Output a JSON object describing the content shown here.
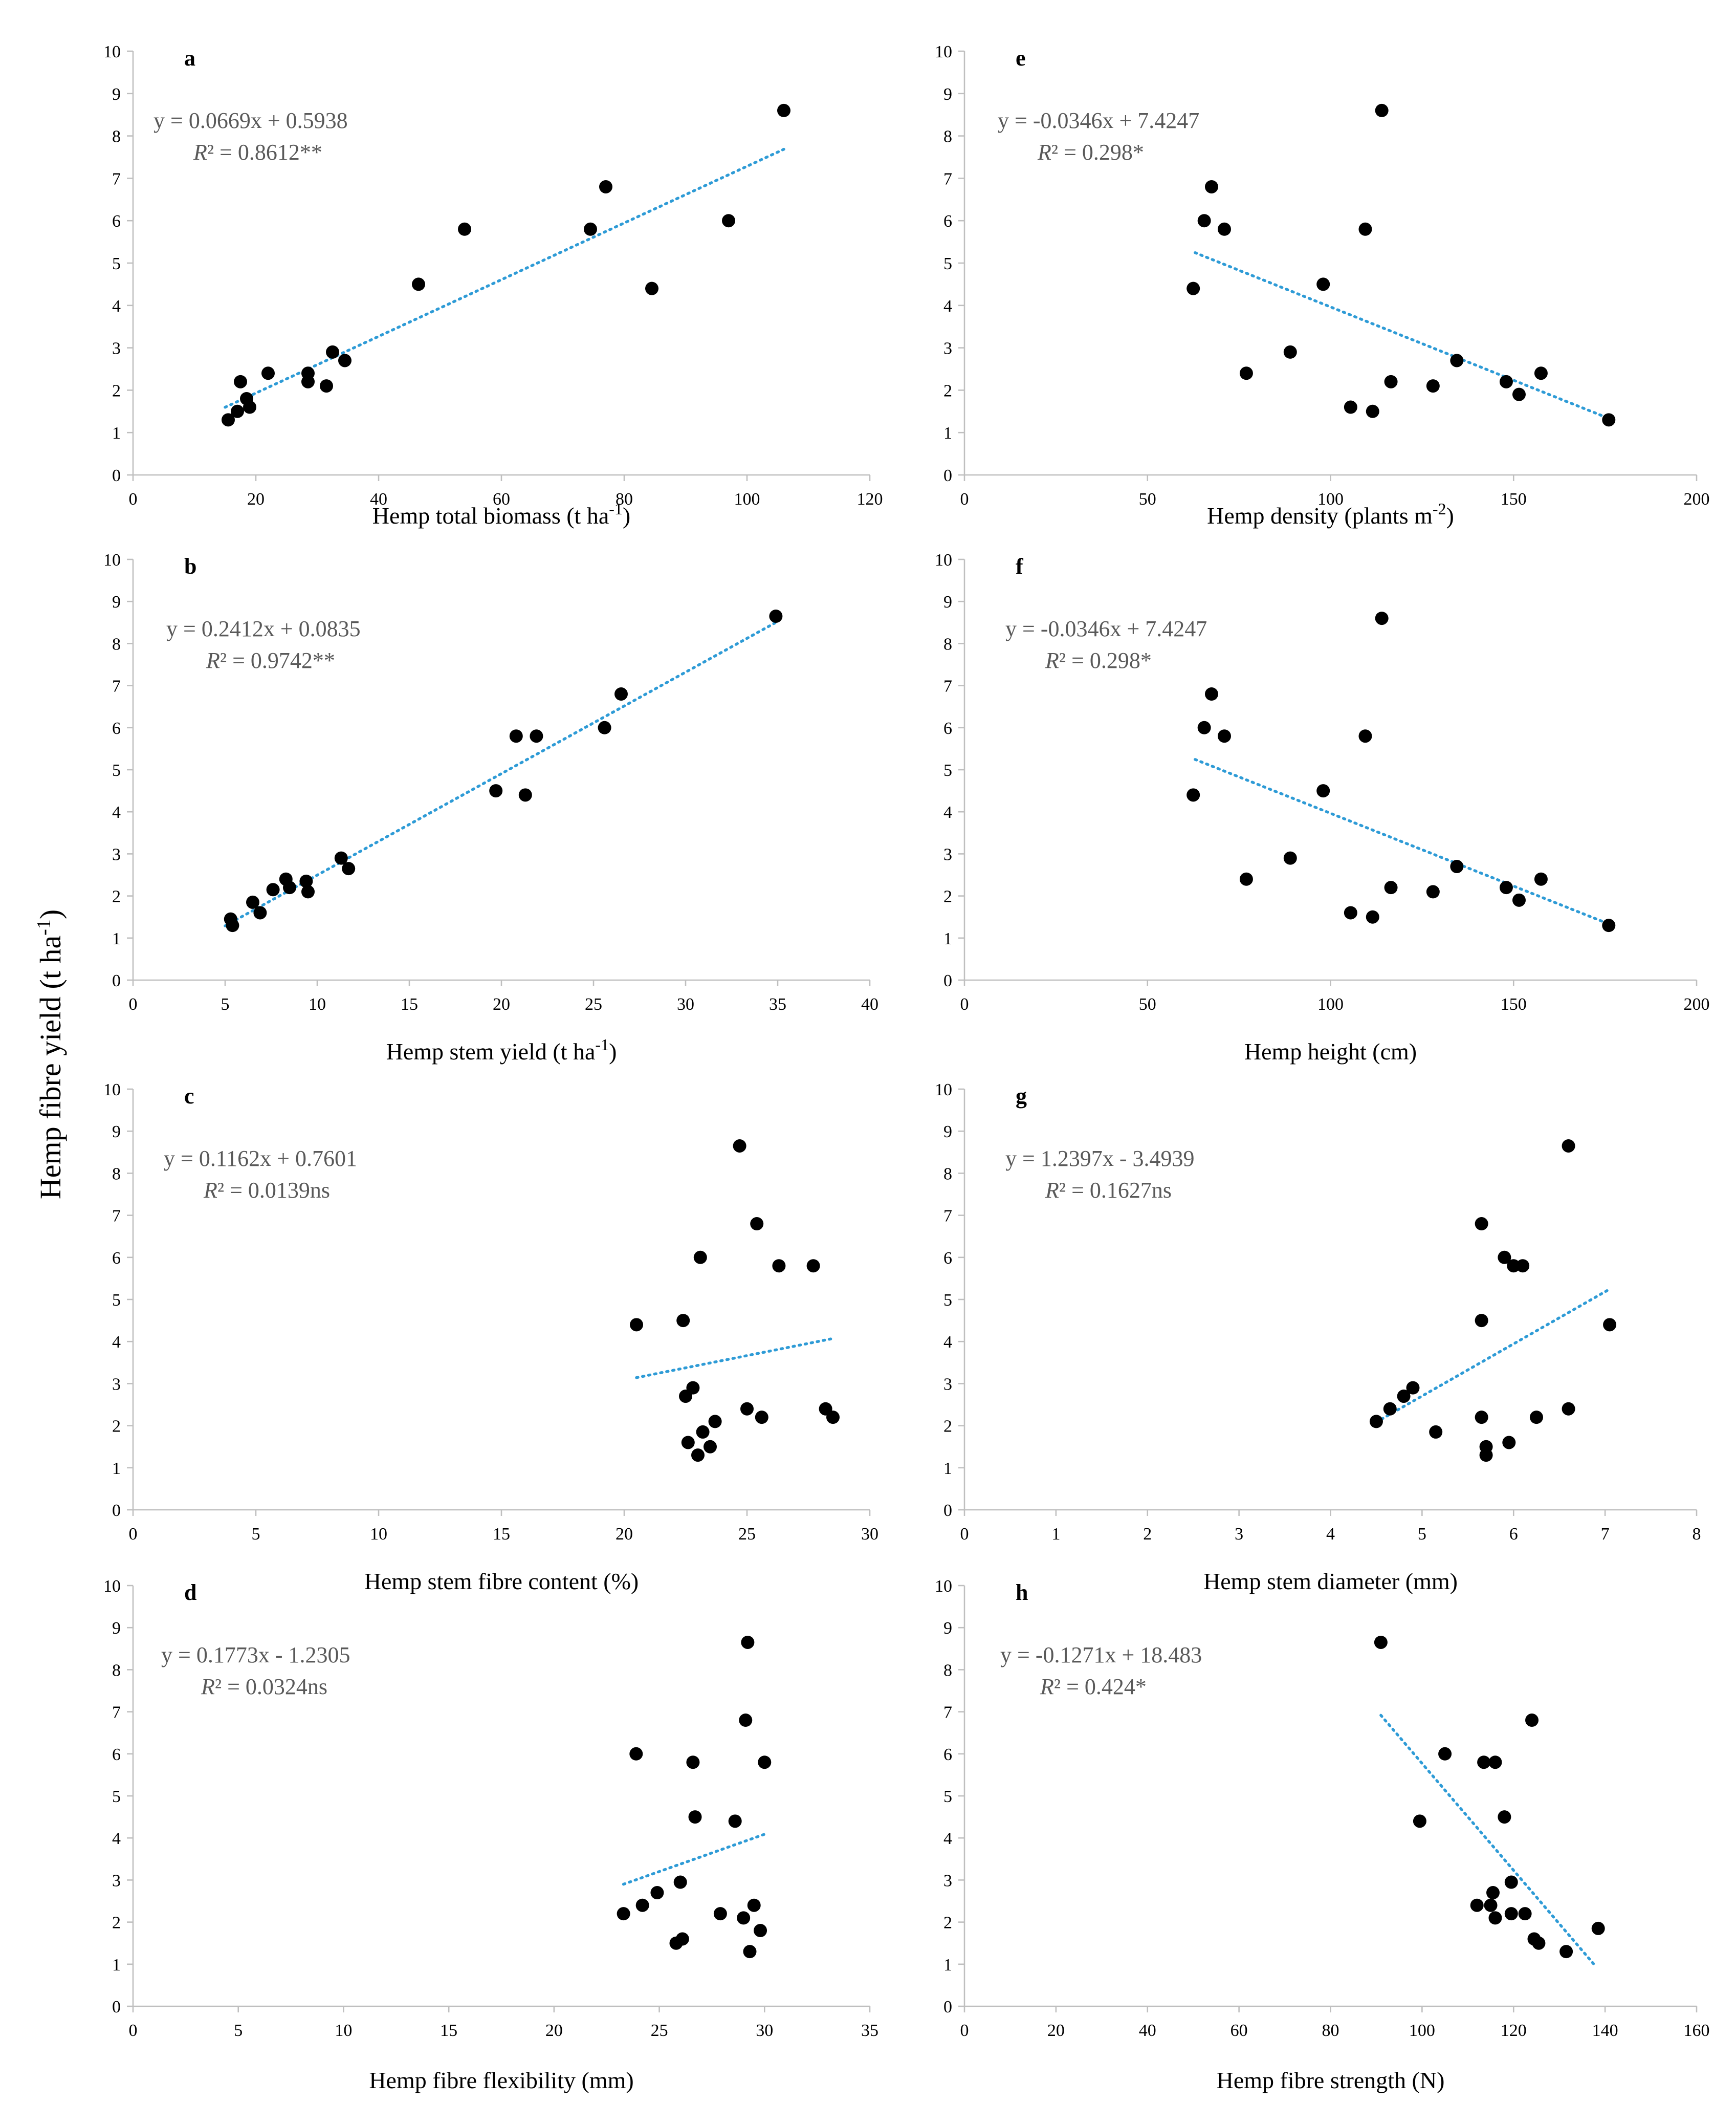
{
  "figure": {
    "ylabel": "Hemp fibre yield (t ha",
    "ylabel_sup": "-1",
    "ylabel_tail": ")"
  },
  "chart_data": [
    {
      "id": "a",
      "type": "scatter",
      "letter": "a",
      "xlabel": "Hemp total biomass (t ha",
      "xlabel_sup": "-1",
      "xlabel_tail": ")",
      "xlim": [
        0,
        120
      ],
      "xticks": [
        0,
        20,
        40,
        60,
        80,
        100,
        120
      ],
      "ylim": [
        0,
        10
      ],
      "yticks": [
        0,
        1,
        2,
        3,
        4,
        5,
        6,
        7,
        8,
        9,
        10
      ],
      "equation": "y = 0.0669x + 0.5938",
      "r2_value": " = 0.8612**",
      "trend": {
        "slope": 0.0669,
        "intercept": 0.5938,
        "x_range": [
          15,
          106
        ]
      },
      "points": [
        [
          15.5,
          1.3
        ],
        [
          17,
          1.5
        ],
        [
          17.5,
          2.2
        ],
        [
          18.5,
          1.8
        ],
        [
          19,
          1.6
        ],
        [
          22,
          2.4
        ],
        [
          28.5,
          2.2
        ],
        [
          28.5,
          2.4
        ],
        [
          31.5,
          2.1
        ],
        [
          32.5,
          2.9
        ],
        [
          34.5,
          2.7
        ],
        [
          46.5,
          4.5
        ],
        [
          54,
          5.8
        ],
        [
          74.5,
          5.8
        ],
        [
          77,
          6.8
        ],
        [
          84.5,
          4.4
        ],
        [
          97,
          6.0
        ],
        [
          106,
          8.6
        ]
      ]
    },
    {
      "id": "e",
      "type": "scatter",
      "letter": "e",
      "xlabel": "Hemp density (plants m",
      "xlabel_sup": "-2",
      "xlabel_tail": ")",
      "xlim": [
        0,
        200
      ],
      "xticks": [
        0,
        50,
        100,
        150,
        200
      ],
      "ylim": [
        0,
        10
      ],
      "yticks": [
        0,
        1,
        2,
        3,
        4,
        5,
        6,
        7,
        8,
        9,
        10
      ],
      "equation": "y = -0.0346x + 7.4247",
      "r2_value": " = 0.298*",
      "trend": {
        "slope": -0.0346,
        "intercept": 7.4247,
        "x_range": [
          63,
          176
        ]
      },
      "points": [
        [
          62.5,
          4.4
        ],
        [
          65.5,
          6.0
        ],
        [
          67.5,
          6.8
        ],
        [
          71,
          5.8
        ],
        [
          77,
          2.4
        ],
        [
          89,
          2.9
        ],
        [
          98,
          4.5
        ],
        [
          105.5,
          1.6
        ],
        [
          109.5,
          5.8
        ],
        [
          111.5,
          1.5
        ],
        [
          114,
          8.6
        ],
        [
          116.5,
          2.2
        ],
        [
          128,
          2.1
        ],
        [
          134.5,
          2.7
        ],
        [
          148,
          2.2
        ],
        [
          151.5,
          1.9
        ],
        [
          157.5,
          2.4
        ],
        [
          176,
          1.3
        ]
      ]
    },
    {
      "id": "b",
      "type": "scatter",
      "letter": "b",
      "xlabel": "Hemp stem yield (t ha",
      "xlabel_sup": "-1",
      "xlabel_tail": ")",
      "xlim": [
        0,
        40
      ],
      "xticks": [
        0,
        5,
        10,
        15,
        20,
        25,
        30,
        35,
        40
      ],
      "ylim": [
        0,
        10
      ],
      "yticks": [
        0,
        1,
        2,
        3,
        4,
        5,
        6,
        7,
        8,
        9,
        10
      ],
      "equation": "y = 0.2412x + 0.0835",
      "r2_value": " = 0.9742**",
      "trend": {
        "slope": 0.2412,
        "intercept": 0.0835,
        "x_range": [
          5,
          35
        ]
      },
      "points": [
        [
          5.3,
          1.45
        ],
        [
          5.4,
          1.3
        ],
        [
          6.5,
          1.85
        ],
        [
          6.9,
          1.6
        ],
        [
          7.6,
          2.15
        ],
        [
          8.3,
          2.4
        ],
        [
          8.5,
          2.2
        ],
        [
          9.4,
          2.35
        ],
        [
          9.5,
          2.1
        ],
        [
          11.3,
          2.9
        ],
        [
          11.7,
          2.65
        ],
        [
          19.7,
          4.5
        ],
        [
          20.8,
          5.8
        ],
        [
          21.3,
          4.4
        ],
        [
          21.9,
          5.8
        ],
        [
          25.6,
          6.0
        ],
        [
          26.5,
          6.8
        ],
        [
          34.9,
          8.65
        ]
      ]
    },
    {
      "id": "f",
      "type": "scatter",
      "letter": "f",
      "xlabel": "Hemp height (cm)",
      "xlabel_sup": "",
      "xlabel_tail": "",
      "xlim": [
        0,
        200
      ],
      "xticks": [
        0,
        50,
        100,
        150,
        200
      ],
      "ylim": [
        0,
        10
      ],
      "yticks": [
        0,
        1,
        2,
        3,
        4,
        5,
        6,
        7,
        8,
        9,
        10
      ],
      "equation": "y = -0.0346x + 7.4247",
      "r2_value": " = 0.298*",
      "trend": {
        "slope": -0.0346,
        "intercept": 7.4247,
        "x_range": [
          63,
          176
        ]
      },
      "points": [
        [
          62.5,
          4.4
        ],
        [
          65.5,
          6.0
        ],
        [
          67.5,
          6.8
        ],
        [
          71,
          5.8
        ],
        [
          77,
          2.4
        ],
        [
          89,
          2.9
        ],
        [
          98,
          4.5
        ],
        [
          105.5,
          1.6
        ],
        [
          109.5,
          5.8
        ],
        [
          111.5,
          1.5
        ],
        [
          114,
          8.6
        ],
        [
          116.5,
          2.2
        ],
        [
          128,
          2.1
        ],
        [
          134.5,
          2.7
        ],
        [
          148,
          2.2
        ],
        [
          151.5,
          1.9
        ],
        [
          157.5,
          2.4
        ],
        [
          176,
          1.3
        ]
      ]
    },
    {
      "id": "c",
      "type": "scatter",
      "letter": "c",
      "xlabel": "Hemp stem fibre content (%)",
      "xlabel_sup": "",
      "xlabel_tail": "",
      "xlim": [
        0,
        30
      ],
      "xticks": [
        0,
        5,
        10,
        15,
        20,
        25,
        30
      ],
      "ylim": [
        0,
        10
      ],
      "yticks": [
        0,
        1,
        2,
        3,
        4,
        5,
        6,
        7,
        8,
        9,
        10
      ],
      "equation": "y = 0.1162x + 0.7601",
      "r2_value": " = 0.0139ns",
      "trend": {
        "slope": 0.1162,
        "intercept": 0.7601,
        "x_range": [
          20.5,
          28.5
        ]
      },
      "points": [
        [
          20.5,
          4.4
        ],
        [
          22.4,
          4.5
        ],
        [
          22.5,
          2.7
        ],
        [
          22.6,
          1.6
        ],
        [
          22.8,
          2.9
        ],
        [
          23,
          1.3
        ],
        [
          23.1,
          6.0
        ],
        [
          23.2,
          1.85
        ],
        [
          23.5,
          1.5
        ],
        [
          23.7,
          2.1
        ],
        [
          24.7,
          8.65
        ],
        [
          25,
          2.4
        ],
        [
          25.4,
          6.8
        ],
        [
          25.6,
          2.2
        ],
        [
          26.3,
          5.8
        ],
        [
          27.7,
          5.8
        ],
        [
          28.2,
          2.4
        ],
        [
          28.5,
          2.2
        ]
      ]
    },
    {
      "id": "g",
      "type": "scatter",
      "letter": "g",
      "xlabel": "Hemp stem diameter (mm)",
      "xlabel_sup": "",
      "xlabel_tail": "",
      "xlim": [
        0,
        8
      ],
      "xticks": [
        0,
        1,
        2,
        3,
        4,
        5,
        6,
        7,
        8
      ],
      "ylim": [
        0,
        10
      ],
      "yticks": [
        0,
        1,
        2,
        3,
        4,
        5,
        6,
        7,
        8,
        9,
        10
      ],
      "equation": "y = 1.2397x - 3.4939",
      "r2_value": " = 0.1627ns",
      "trend": {
        "slope": 1.2397,
        "intercept": -3.4939,
        "x_range": [
          4.5,
          7.05
        ]
      },
      "points": [
        [
          4.5,
          2.1
        ],
        [
          4.65,
          2.4
        ],
        [
          4.8,
          2.7
        ],
        [
          4.9,
          2.9
        ],
        [
          5.15,
          1.85
        ],
        [
          5.65,
          6.8
        ],
        [
          5.65,
          4.5
        ],
        [
          5.65,
          2.2
        ],
        [
          5.7,
          1.3
        ],
        [
          5.7,
          1.5
        ],
        [
          5.9,
          6.0
        ],
        [
          5.95,
          1.6
        ],
        [
          6.0,
          5.8
        ],
        [
          6.1,
          5.8
        ],
        [
          6.25,
          2.2
        ],
        [
          6.6,
          8.65
        ],
        [
          6.6,
          2.4
        ],
        [
          7.05,
          4.4
        ]
      ]
    },
    {
      "id": "d",
      "type": "scatter",
      "letter": "d",
      "xlabel": "Hemp fibre flexibility (mm)",
      "xlabel_sup": "",
      "xlabel_tail": "",
      "xlim": [
        0,
        35
      ],
      "xticks": [
        0,
        5,
        10,
        15,
        20,
        25,
        30,
        35
      ],
      "ylim": [
        0,
        10
      ],
      "yticks": [
        0,
        1,
        2,
        3,
        4,
        5,
        6,
        7,
        8,
        9,
        10
      ],
      "equation": "y = 0.1773x  - 1.2305",
      "r2_value": " = 0.0324ns",
      "trend": {
        "slope": 0.1773,
        "intercept": -1.2305,
        "x_range": [
          23.3,
          30
        ]
      },
      "points": [
        [
          23.3,
          2.2
        ],
        [
          23.9,
          6.0
        ],
        [
          24.2,
          2.4
        ],
        [
          24.9,
          2.7
        ],
        [
          25.8,
          1.5
        ],
        [
          26,
          2.95
        ],
        [
          26.1,
          1.6
        ],
        [
          26.6,
          5.8
        ],
        [
          26.7,
          4.5
        ],
        [
          27.9,
          2.2
        ],
        [
          28.6,
          4.4
        ],
        [
          29,
          2.1
        ],
        [
          29.1,
          6.8
        ],
        [
          29.2,
          8.65
        ],
        [
          29.3,
          1.3
        ],
        [
          29.5,
          2.4
        ],
        [
          29.8,
          1.8
        ],
        [
          30,
          5.8
        ]
      ]
    },
    {
      "id": "h",
      "type": "scatter",
      "letter": "h",
      "xlabel": "Hemp fibre strength (N)",
      "xlabel_sup": "",
      "xlabel_tail": "",
      "xlim": [
        0,
        160
      ],
      "xticks": [
        0,
        20,
        40,
        60,
        80,
        100,
        120,
        140,
        160
      ],
      "ylim": [
        0,
        10
      ],
      "yticks": [
        0,
        1,
        2,
        3,
        4,
        5,
        6,
        7,
        8,
        9,
        10
      ],
      "equation": "y = -0.1271x + 18.483",
      "r2_value": " = 0.424*",
      "trend": {
        "slope": -0.1271,
        "intercept": 18.483,
        "x_range": [
          91,
          138
        ]
      },
      "points": [
        [
          91,
          8.65
        ],
        [
          99.5,
          4.4
        ],
        [
          105,
          6.0
        ],
        [
          112,
          2.4
        ],
        [
          113.5,
          5.8
        ],
        [
          115,
          2.4
        ],
        [
          115.5,
          2.7
        ],
        [
          116,
          5.8
        ],
        [
          116,
          2.1
        ],
        [
          118,
          4.5
        ],
        [
          119.5,
          2.95
        ],
        [
          119.5,
          2.2
        ],
        [
          122.5,
          2.2
        ],
        [
          124,
          6.8
        ],
        [
          124.5,
          1.6
        ],
        [
          125.5,
          1.5
        ],
        [
          131.5,
          1.3
        ],
        [
          138.5,
          1.85
        ]
      ]
    }
  ]
}
